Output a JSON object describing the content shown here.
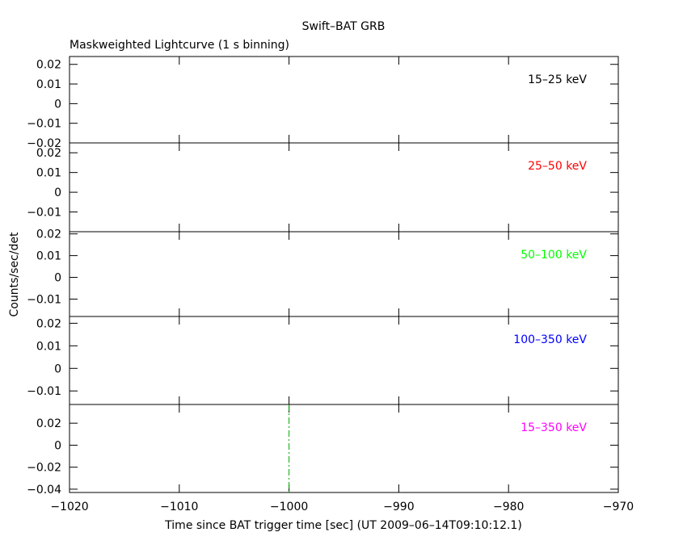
{
  "chart_data": {
    "type": "line",
    "title": "Swift–BAT GRB",
    "subtitle": "Maskweighted Lightcurve (1 s binning)",
    "xlabel": "Time since BAT trigger time [sec] (UT 2009–06–14T09:10:12.1)",
    "ylabel": "Counts/sec/det",
    "xlim": [
      -1020,
      -970
    ],
    "xticks": [
      -1020,
      -1010,
      -1000,
      -990,
      -980,
      -970
    ],
    "xtick_labels": [
      "−1020",
      "−1010",
      "−1000",
      "−990",
      "−980",
      "−970"
    ],
    "grid": false,
    "panels": [
      {
        "band": "15–25 keV",
        "color": "#000000",
        "ylim": [
          -0.02,
          0.024
        ],
        "yticks": [
          -0.02,
          -0.01,
          0,
          0.01,
          0.02
        ],
        "ytick_labels": [
          "−0.02",
          "−0.01",
          "0",
          "0.01",
          "0.02"
        ],
        "series": []
      },
      {
        "band": "25–50 keV",
        "color": "#ff0000",
        "ylim": [
          -0.02,
          0.025
        ],
        "yticks": [
          -0.01,
          0,
          0.01,
          0.02
        ],
        "ytick_labels": [
          "−0.01",
          "0",
          "0.01",
          "0.02"
        ],
        "series": []
      },
      {
        "band": "50–100 keV",
        "color": "#00ff00",
        "ylim": [
          -0.018,
          0.021
        ],
        "yticks": [
          -0.01,
          0,
          0.01,
          0.02
        ],
        "ytick_labels": [
          "−0.01",
          "0",
          "0.01",
          "0.02"
        ],
        "series": []
      },
      {
        "band": "100–350 keV",
        "color": "#0000ff",
        "ylim": [
          -0.016,
          0.023
        ],
        "yticks": [
          -0.01,
          0,
          0.01,
          0.02
        ],
        "ytick_labels": [
          "−0.01",
          "0",
          "0.01",
          "0.02"
        ],
        "series": []
      },
      {
        "band": "15–350 keV",
        "color": "#ff00ff",
        "ylim": [
          -0.043,
          0.037
        ],
        "yticks": [
          -0.04,
          -0.02,
          0,
          0.02
        ],
        "ytick_labels": [
          "−0.04",
          "−0.02",
          "0",
          "0.02"
        ],
        "series": []
      }
    ],
    "markers": [
      {
        "x": -1000,
        "color": "#00aa00",
        "style": "dash-dot",
        "panel": 4
      }
    ]
  }
}
